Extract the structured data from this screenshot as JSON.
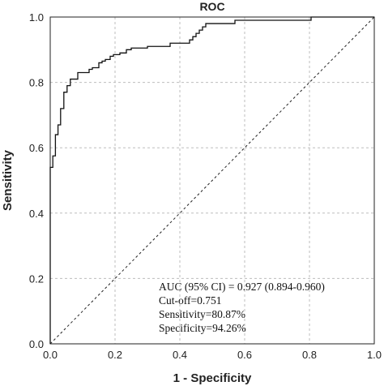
{
  "chart_data": {
    "type": "line",
    "title": "ROC",
    "xlabel": "1 - Specificity",
    "ylabel": "Sensitivity",
    "xlim": [
      0,
      1
    ],
    "ylim": [
      0,
      1
    ],
    "xticks": [
      "0.0",
      "0.2",
      "0.4",
      "0.6",
      "0.8",
      "1.0"
    ],
    "yticks": [
      "0.0",
      "0.2",
      "0.4",
      "0.6",
      "0.8",
      "1.0"
    ],
    "grid": true,
    "series": [
      {
        "x": [
          0,
          0,
          0.008,
          0.008,
          0.016,
          0.016,
          0.024,
          0.024,
          0.032,
          0.032,
          0.042,
          0.042,
          0.052,
          0.052,
          0.062,
          0.062,
          0.085,
          0.085,
          0.12,
          0.12,
          0.13,
          0.13,
          0.15,
          0.15,
          0.16,
          0.16,
          0.17,
          0.17,
          0.185,
          0.185,
          0.195,
          0.195,
          0.215,
          0.215,
          0.235,
          0.235,
          0.25,
          0.25,
          0.3,
          0.3,
          0.37,
          0.37,
          0.43,
          0.43,
          0.44,
          0.44,
          0.45,
          0.45,
          0.46,
          0.46,
          0.47,
          0.47,
          0.48,
          0.48,
          0.57,
          0.57,
          0.805,
          0.805,
          0.83,
          0.83,
          1.0
        ],
        "y": [
          0,
          0.54,
          0.54,
          0.575,
          0.575,
          0.64,
          0.64,
          0.67,
          0.67,
          0.72,
          0.72,
          0.77,
          0.77,
          0.79,
          0.79,
          0.81,
          0.81,
          0.83,
          0.83,
          0.84,
          0.84,
          0.845,
          0.845,
          0.86,
          0.86,
          0.865,
          0.865,
          0.87,
          0.87,
          0.88,
          0.88,
          0.885,
          0.885,
          0.89,
          0.89,
          0.9,
          0.9,
          0.905,
          0.905,
          0.91,
          0.91,
          0.92,
          0.92,
          0.93,
          0.93,
          0.94,
          0.94,
          0.95,
          0.95,
          0.96,
          0.96,
          0.97,
          0.97,
          0.98,
          0.98,
          0.99,
          0.99,
          1.0,
          1.0,
          1.0,
          1.0
        ]
      }
    ],
    "reference_line": {
      "x": [
        0,
        1
      ],
      "y": [
        0,
        1
      ],
      "style": "dashed"
    },
    "annotations": [
      "AUC (95% CI) = 0.927 (0.894-0.960)",
      "Cut-off=0.751",
      "Sensitivity=80.87%",
      "Specificity=94.26%"
    ]
  }
}
